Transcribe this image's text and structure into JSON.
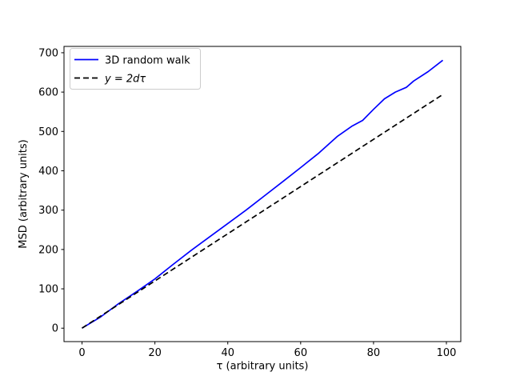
{
  "figure": {
    "background": "#ffffff",
    "axes_edge_color": "#000000"
  },
  "chart_data": {
    "type": "line",
    "title": "",
    "xlabel": "τ (arbitrary units)",
    "ylabel": "MSD (arbitrary units)",
    "xlim": [
      -4.95,
      103.95
    ],
    "ylim": [
      -34.1,
      716.1
    ],
    "xticks": [
      0,
      20,
      40,
      60,
      80,
      100
    ],
    "yticks": [
      0,
      100,
      200,
      300,
      400,
      500,
      600,
      700
    ],
    "grid": false,
    "legend_position": "upper left",
    "series": [
      {
        "name": "3D random walk",
        "color": "#0000ff",
        "style": "solid",
        "x": [
          0,
          5,
          10,
          15,
          20,
          25,
          30,
          35,
          40,
          45,
          50,
          55,
          60,
          65,
          70,
          74,
          77,
          80,
          83,
          86,
          89,
          91,
          95,
          99
        ],
        "y": [
          0,
          28,
          62,
          93,
          125,
          162,
          198,
          232,
          266,
          300,
          336,
          372,
          408,
          445,
          487,
          513,
          528,
          556,
          583,
          600,
          612,
          628,
          652,
          681
        ]
      },
      {
        "name": "y = 2dτ",
        "color": "#000000",
        "style": "dashed",
        "x": [
          0,
          99
        ],
        "y": [
          0,
          594
        ]
      }
    ]
  }
}
